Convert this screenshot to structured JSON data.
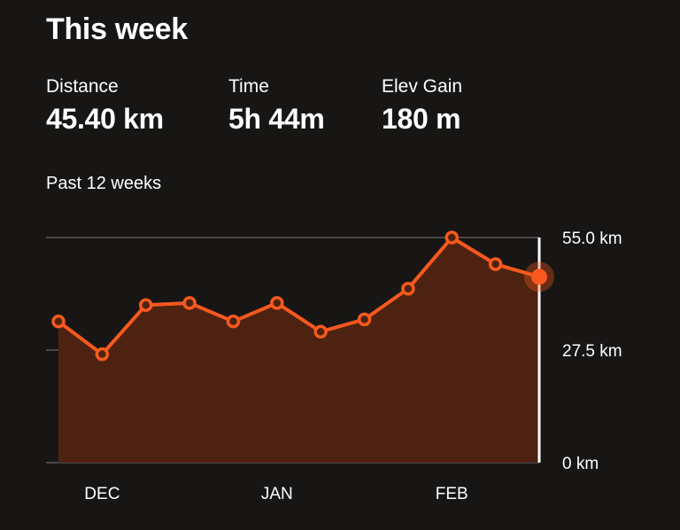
{
  "header": {
    "title": "This week"
  },
  "stats": [
    {
      "label": "Distance",
      "value": "45.40 km"
    },
    {
      "label": "Time",
      "value": "5h 44m"
    },
    {
      "label": "Elev Gain",
      "value": "180 m"
    }
  ],
  "chart_subtitle": "Past 12 weeks",
  "colors": {
    "accent": "#f7591e",
    "fill": "#4e2211",
    "grid": "#4a4746",
    "background": "#171615"
  },
  "chart_data": {
    "type": "area",
    "title": "Past 12 weeks",
    "x": [
      1,
      2,
      3,
      4,
      5,
      6,
      7,
      8,
      9,
      10,
      11,
      12
    ],
    "values": [
      34.5,
      26.5,
      38.5,
      39.0,
      34.5,
      39.0,
      32.0,
      35.0,
      42.5,
      55.0,
      48.5,
      45.4
    ],
    "unit": "km",
    "ylim": [
      0,
      55
    ],
    "yticks": [
      {
        "value": 0,
        "label": "0 km"
      },
      {
        "value": 27.5,
        "label": "27.5 km"
      },
      {
        "value": 55,
        "label": "55.0 km"
      }
    ],
    "month_labels": [
      {
        "label": "DEC",
        "x": 2
      },
      {
        "label": "JAN",
        "x": 6
      },
      {
        "label": "FEB",
        "x": 10
      }
    ],
    "highlight_index": 11,
    "grid": true
  }
}
